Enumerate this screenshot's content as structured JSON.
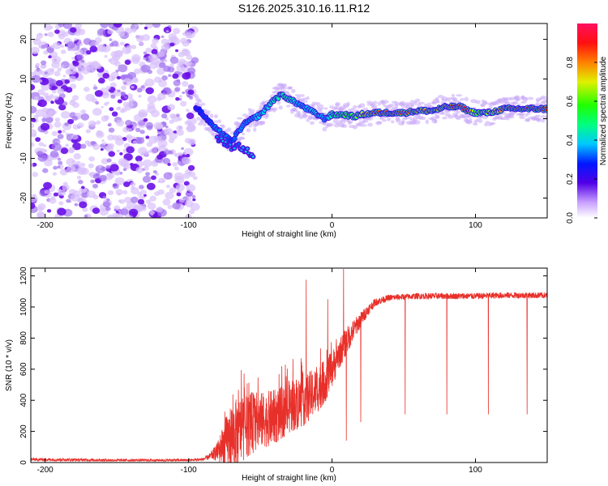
{
  "title": "S126.2025.310.16.11.R12",
  "chart_data": [
    {
      "type": "heatmap",
      "name": "spectrogram",
      "xlabel": "Height of straight line (km)",
      "ylabel": "Frequency (Hz)",
      "xlim": [
        -210,
        150
      ],
      "ylim": [
        -25,
        24
      ],
      "xticks": [
        -200,
        -100,
        0,
        100
      ],
      "yticks": [
        -20,
        -10,
        0,
        10,
        20
      ],
      "noise_region_x": [
        -210,
        -95
      ],
      "ridge": {
        "x": [
          -95,
          -90,
          -85,
          -80,
          -75,
          -70,
          -65,
          -60,
          -55,
          -50,
          -45,
          -40,
          -35,
          -30,
          -25,
          -20,
          -15,
          -10,
          -5,
          0,
          5,
          10,
          15,
          20,
          30,
          40,
          50,
          60,
          70,
          80,
          90,
          95,
          100,
          110,
          120,
          130,
          140,
          150
        ],
        "y": [
          3,
          1,
          -1,
          -3,
          -4,
          -6,
          -3,
          -1,
          0,
          1,
          3,
          5,
          6,
          5,
          4,
          3,
          2,
          1,
          0,
          1,
          1,
          1,
          0.5,
          1,
          1.5,
          1.5,
          1.5,
          2,
          2,
          3,
          3,
          2,
          1.5,
          1.5,
          2.5,
          2.5,
          2.5,
          2.5
        ],
        "amplitude": [
          0.25,
          0.3,
          0.3,
          0.35,
          0.35,
          0.3,
          0.35,
          0.35,
          0.35,
          0.4,
          0.4,
          0.45,
          0.45,
          0.45,
          0.4,
          0.35,
          0.4,
          0.4,
          0.35,
          0.45,
          0.55,
          0.6,
          0.6,
          0.7,
          0.85,
          0.9,
          0.85,
          0.8,
          0.8,
          0.85,
          0.95,
          0.9,
          0.6,
          0.7,
          0.85,
          0.9,
          0.9,
          0.9
        ]
      },
      "secondary_ridge": {
        "x": [
          -80,
          -75,
          -70,
          -65,
          -60,
          -55
        ],
        "y": [
          -5,
          -6,
          -7,
          -7,
          -8,
          -9
        ]
      },
      "colorbar": {
        "label": "Normalized spectral amplitude",
        "ticks": [
          0.0,
          0.2,
          0.4,
          0.6,
          0.8
        ],
        "tick_labels": [
          "0.0",
          "0.2",
          "0.4",
          "0.6",
          "0.8"
        ],
        "range": [
          0,
          1
        ]
      }
    },
    {
      "type": "line",
      "name": "snr",
      "xlabel": "Height of straight line (km)",
      "ylabel": "SNR (10 * v/v)",
      "xlim": [
        -210,
        150
      ],
      "ylim": [
        0,
        1250
      ],
      "xticks": [
        -200,
        -100,
        0,
        100
      ],
      "yticks": [
        0,
        200,
        400,
        600,
        800,
        1000,
        1200
      ],
      "color": "#e8302a",
      "envelope": {
        "x": [
          -210,
          -150,
          -100,
          -90,
          -85,
          -80,
          -75,
          -70,
          -65,
          -60,
          -55,
          -50,
          -45,
          -40,
          -35,
          -30,
          -25,
          -20,
          -15,
          -10,
          -5,
          0,
          5,
          10,
          15,
          20,
          25,
          30,
          40,
          60,
          80,
          100,
          120,
          150
        ],
        "y": [
          20,
          15,
          15,
          20,
          40,
          70,
          120,
          170,
          200,
          230,
          260,
          270,
          280,
          290,
          320,
          350,
          380,
          400,
          430,
          470,
          520,
          600,
          700,
          780,
          850,
          920,
          980,
          1030,
          1060,
          1070,
          1070,
          1070,
          1075,
          1075
        ],
        "noise": [
          10,
          8,
          8,
          10,
          20,
          60,
          150,
          220,
          220,
          200,
          200,
          180,
          180,
          180,
          170,
          170,
          170,
          170,
          160,
          150,
          140,
          120,
          100,
          90,
          70,
          50,
          35,
          25,
          20,
          20,
          20,
          20,
          20,
          20
        ]
      },
      "spikes_up": [
        {
          "x": -18,
          "y": 1175
        },
        {
          "x": -3,
          "y": 1050
        },
        {
          "x": 8,
          "y": 1245
        }
      ],
      "spikes_down": [
        {
          "x": 10,
          "y": 140
        },
        {
          "x": 20,
          "y": 260
        },
        {
          "x": 51,
          "y": 310
        },
        {
          "x": 80,
          "y": 310
        },
        {
          "x": 109,
          "y": 310
        },
        {
          "x": 136,
          "y": 310
        }
      ]
    }
  ]
}
